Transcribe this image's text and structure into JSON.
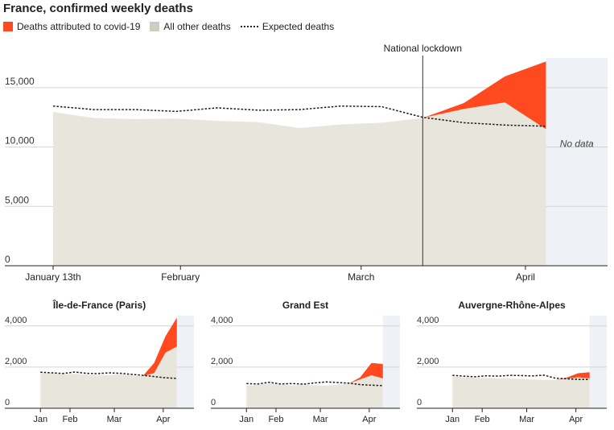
{
  "title": "France, confirmed weekly deaths",
  "colors": {
    "covid": "#ff4a1f",
    "other": "#e8e6dc",
    "expected": "#1a1a1a",
    "nodata": "#eef2f6",
    "grid": "#d4d4d4",
    "axis": "#222222"
  },
  "legend": {
    "covid": "Deaths attributed to covid-19",
    "other": "All other deaths",
    "expected": "Expected deaths"
  },
  "chart_data": [
    {
      "type": "area",
      "name": "France",
      "title": "",
      "x": [
        1,
        2,
        3,
        4,
        5,
        6,
        7,
        8,
        9,
        10,
        11,
        12,
        13,
        14
      ],
      "other_deaths": [
        12950,
        12450,
        12350,
        12400,
        12200,
        12100,
        11600,
        11900,
        12050,
        12450,
        13200,
        13750,
        11500,
        null
      ],
      "covid_deaths": [
        0,
        0,
        0,
        0,
        0,
        0,
        0,
        0,
        0,
        0,
        500,
        2200,
        5700,
        null
      ],
      "expected_deaths": [
        13450,
        13150,
        13150,
        13000,
        13300,
        13100,
        13150,
        13450,
        13400,
        12500,
        12050,
        11850,
        11750,
        null
      ],
      "xlim": [
        1,
        14.5
      ],
      "ylim": [
        0,
        17500
      ],
      "yticks": [
        0,
        5000,
        10000,
        15000
      ],
      "ytick_labels": [
        "0",
        "5,000",
        "10,000",
        "15,000"
      ],
      "xticks": [
        1,
        4.1,
        8.5,
        12.5
      ],
      "xtick_labels": [
        "January 13th",
        "February",
        "March",
        "April"
      ],
      "annotation": {
        "x": 10.0,
        "label": "National lockdown"
      },
      "nodata_from": 13,
      "nodata_label": "No data"
    },
    {
      "type": "area",
      "name": "Île-de-France (Paris)",
      "title": "Île-de-France (Paris)",
      "x": [
        1,
        2,
        3,
        4,
        5,
        6,
        7,
        8,
        9,
        10,
        11,
        12,
        13,
        14
      ],
      "other_deaths": [
        1700,
        1700,
        1650,
        1680,
        1640,
        1600,
        1620,
        1650,
        1600,
        1560,
        1700,
        2700,
        3000,
        null
      ],
      "covid_deaths": [
        0,
        0,
        0,
        0,
        0,
        0,
        0,
        0,
        0,
        0,
        500,
        800,
        1400,
        null
      ],
      "expected_deaths": [
        1750,
        1720,
        1690,
        1760,
        1700,
        1680,
        1720,
        1700,
        1650,
        1600,
        1540,
        1480,
        1450,
        null
      ],
      "xlim": [
        0.7,
        14.5
      ],
      "ylim": [
        0,
        4500
      ],
      "yticks": [
        0,
        2000,
        4000
      ],
      "ytick_labels": [
        "0",
        "2,000",
        "4,000"
      ],
      "xticks": [
        1,
        3.6,
        7.5,
        11.8
      ],
      "xtick_labels": [
        "Jan",
        "Feb",
        "Mar",
        "Apr"
      ],
      "nodata_from": 13
    },
    {
      "type": "area",
      "name": "Grand Est",
      "title": "Grand Est",
      "x": [
        1,
        2,
        3,
        4,
        5,
        6,
        7,
        8,
        9,
        10,
        11,
        12,
        13,
        14
      ],
      "other_deaths": [
        1100,
        1150,
        1200,
        1150,
        1100,
        1150,
        1120,
        1100,
        1150,
        1200,
        1400,
        1600,
        1450,
        null
      ],
      "covid_deaths": [
        0,
        0,
        0,
        0,
        0,
        0,
        0,
        0,
        0,
        0,
        100,
        600,
        700,
        null
      ],
      "expected_deaths": [
        1200,
        1180,
        1260,
        1180,
        1200,
        1170,
        1230,
        1280,
        1250,
        1220,
        1150,
        1120,
        1100,
        null
      ],
      "xlim": [
        0.7,
        14.5
      ],
      "ylim": [
        0,
        4500
      ],
      "yticks": [
        0,
        2000,
        4000
      ],
      "ytick_labels": [
        "0",
        "2,000",
        "4,000"
      ],
      "xticks": [
        1,
        3.6,
        7.5,
        11.8
      ],
      "xtick_labels": [
        "Jan",
        "Feb",
        "Mar",
        "Apr"
      ],
      "nodata_from": 13
    },
    {
      "type": "area",
      "name": "Auvergne-Rhône-Alpes",
      "title": "Auvergne-Rhône-Alpes",
      "x": [
        1,
        2,
        3,
        4,
        5,
        6,
        7,
        8,
        9,
        10,
        11,
        12,
        13,
        14
      ],
      "other_deaths": [
        1550,
        1500,
        1480,
        1470,
        1460,
        1450,
        1420,
        1400,
        1380,
        1370,
        1440,
        1500,
        1450,
        null
      ],
      "covid_deaths": [
        0,
        0,
        0,
        0,
        0,
        0,
        0,
        0,
        0,
        0,
        50,
        200,
        300,
        null
      ],
      "expected_deaths": [
        1600,
        1560,
        1530,
        1580,
        1560,
        1600,
        1590,
        1570,
        1610,
        1460,
        1430,
        1400,
        1400,
        null
      ],
      "xlim": [
        0.7,
        14.5
      ],
      "ylim": [
        0,
        4500
      ],
      "yticks": [
        0,
        2000,
        4000
      ],
      "ytick_labels": [
        "0",
        "2,000",
        "4,000"
      ],
      "xticks": [
        1,
        3.6,
        7.5,
        11.8
      ],
      "xtick_labels": [
        "Jan",
        "Feb",
        "Mar",
        "Apr"
      ],
      "nodata_from": 13
    }
  ]
}
